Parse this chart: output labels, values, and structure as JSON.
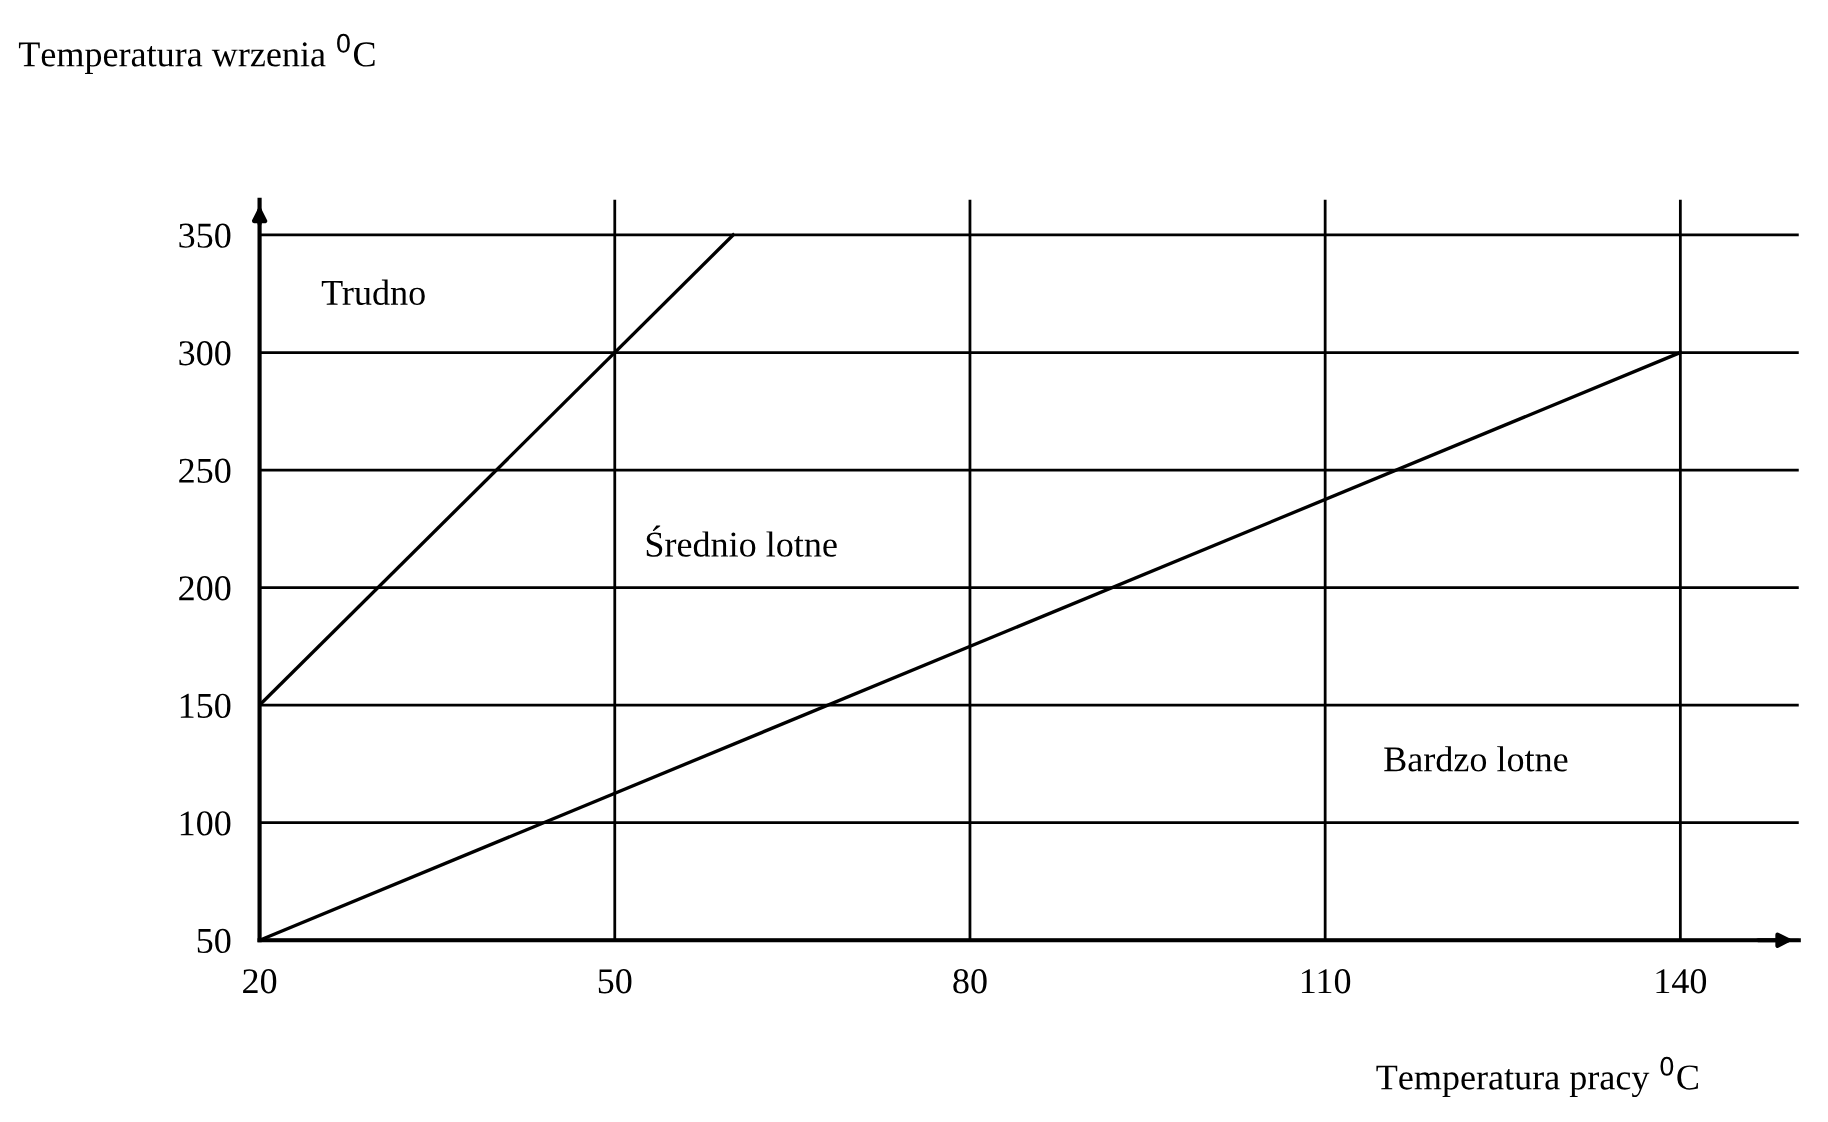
{
  "chart_data": {
    "type": "line",
    "xlabel": "Temperatura pracy $^{0}$C",
    "ylabel": "Temperatura wrzenia $^{0}$C",
    "series": [
      {
        "x": [
          20,
          60
        ],
        "values": [
          150,
          350
        ],
        "color": "#000000"
      },
      {
        "x": [
          20,
          140
        ],
        "values": [
          50,
          300
        ],
        "color": "#000000"
      }
    ],
    "xlim": [
      20,
      150
    ],
    "ylim": [
      50,
      365
    ],
    "xticks": [
      20,
      50,
      80,
      110,
      140
    ],
    "yticks": [
      50,
      100,
      150,
      200,
      250,
      300,
      350
    ],
    "grid": true,
    "legend": false,
    "marker": "none",
    "line_style": "solid",
    "annotations": [
      "Trudno",
      "Średnio lotne",
      "Bardzo lotne"
    ]
  }
}
